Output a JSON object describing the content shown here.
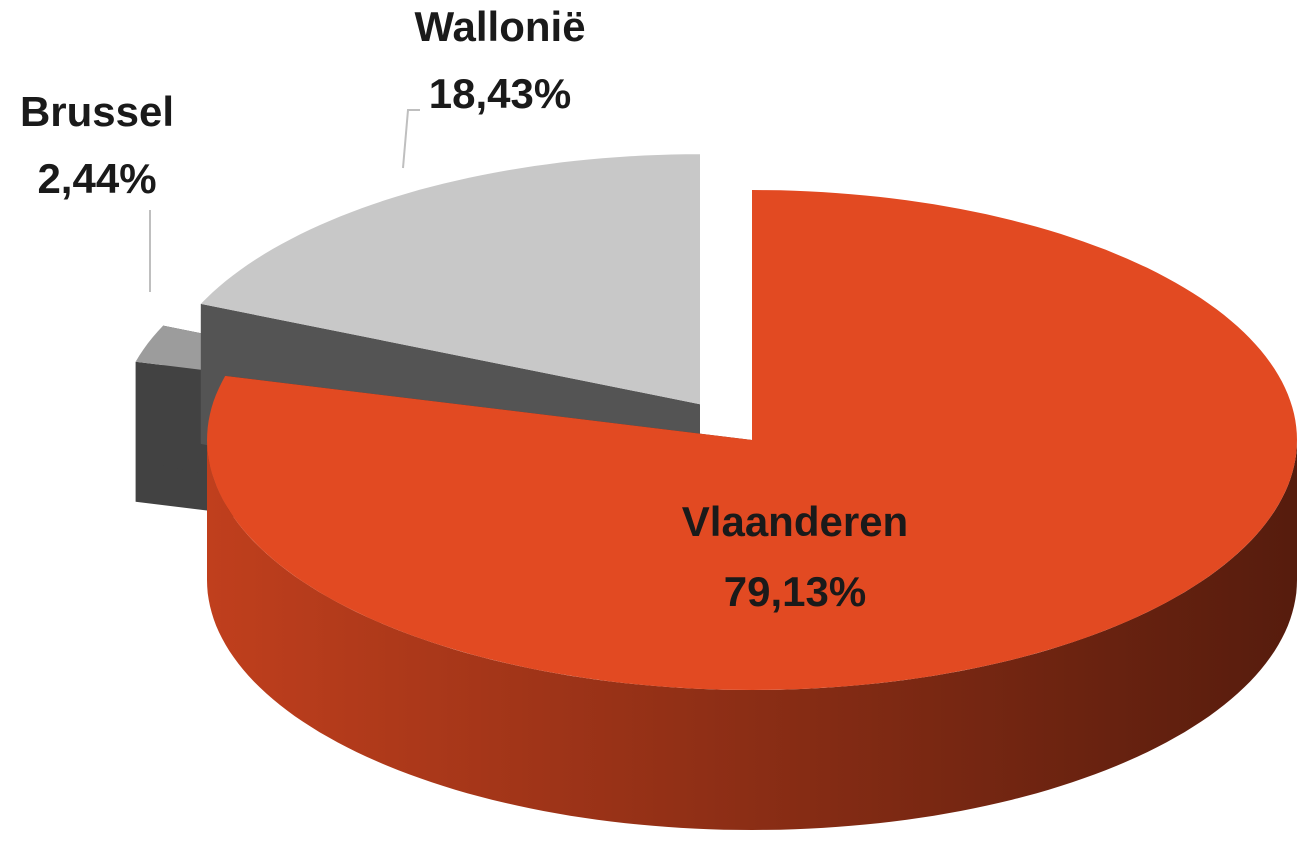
{
  "chart_data": {
    "type": "pie3d",
    "categories": [
      "Vlaanderen",
      "Brussel",
      "Wallonië"
    ],
    "values": [
      79.13,
      2.44,
      18.43
    ],
    "value_labels": [
      "79,13%",
      "2,44%",
      "18,43%"
    ],
    "colors": [
      "#e24a22",
      "#9c9c9c",
      "#c8c8c8"
    ],
    "exploded": [
      false,
      true,
      true
    ]
  }
}
